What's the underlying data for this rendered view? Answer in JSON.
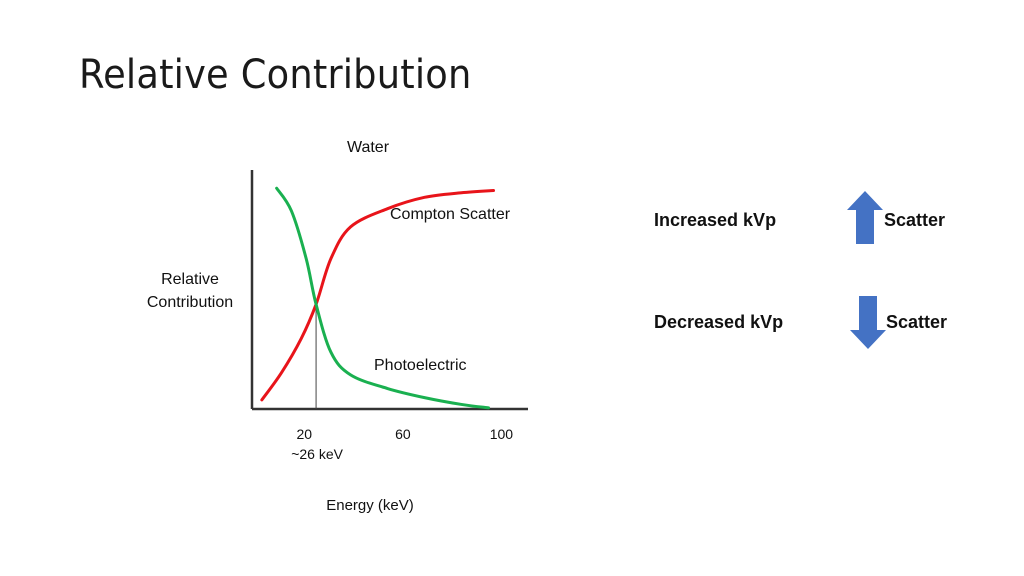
{
  "slide": {
    "title": "Relative Contribution"
  },
  "chart_data": {
    "type": "line",
    "title": "Water",
    "xlabel": "Energy (keV)",
    "ylabel": "Relative Contribution",
    "x_ticks": [
      20,
      60,
      100
    ],
    "crossover": {
      "x": 26,
      "label": "~26 keV"
    },
    "series": [
      {
        "name": "Compton Scatter",
        "color": "#e8141a",
        "x": [
          4,
          12,
          20,
          26,
          32,
          40,
          55,
          70,
          85,
          98
        ],
        "y": [
          0.04,
          0.16,
          0.31,
          0.46,
          0.66,
          0.8,
          0.88,
          0.93,
          0.95,
          0.96
        ]
      },
      {
        "name": "Photoelectric",
        "color": "#1ab050",
        "x": [
          10,
          16,
          22,
          26,
          32,
          40,
          55,
          70,
          85,
          96
        ],
        "y": [
          0.97,
          0.87,
          0.66,
          0.46,
          0.25,
          0.15,
          0.09,
          0.05,
          0.02,
          0.005
        ]
      }
    ],
    "xlim": [
      0,
      112
    ],
    "ylim": [
      0,
      1.05
    ],
    "grid": false,
    "legend": "none"
  },
  "side": {
    "increased_label": "Increased kVp",
    "increased_result": "Scatter",
    "decreased_label": "Decreased kVp",
    "decreased_result": "Scatter",
    "arrow_color": "#4472c4",
    "arrow_up": "up-arrow-icon",
    "arrow_down": "down-arrow-icon"
  }
}
